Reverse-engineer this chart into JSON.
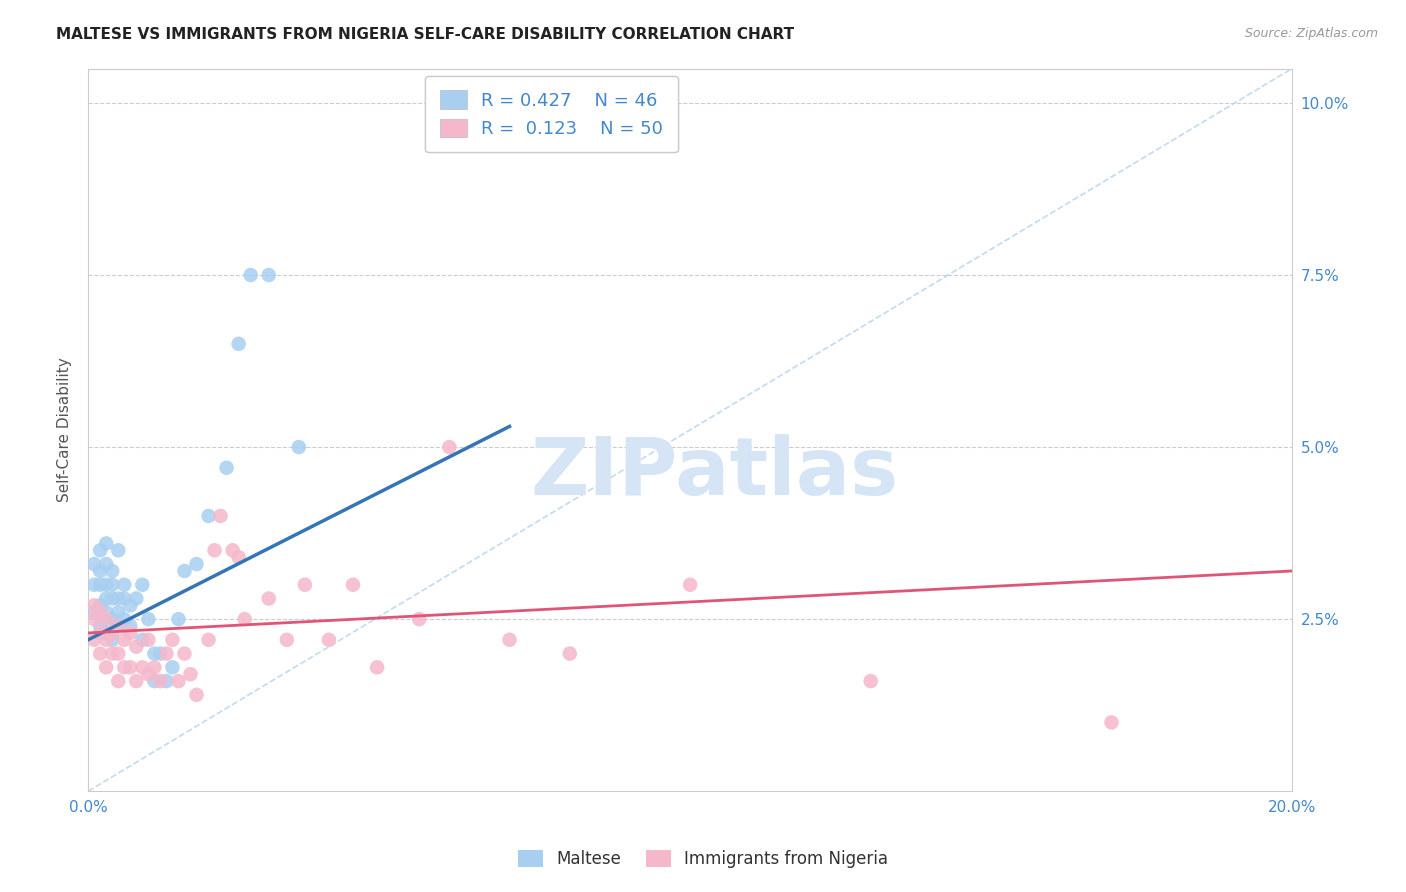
{
  "title": "MALTESE VS IMMIGRANTS FROM NIGERIA SELF-CARE DISABILITY CORRELATION CHART",
  "source": "Source: ZipAtlas.com",
  "ylabel": "Self-Care Disability",
  "xlim": [
    0.0,
    0.2
  ],
  "ylim": [
    0.0,
    0.105
  ],
  "xticks": [
    0.0,
    0.05,
    0.1,
    0.15,
    0.2
  ],
  "xtick_labels": [
    "0.0%",
    "",
    "",
    "",
    "20.0%"
  ],
  "yticks": [
    0.025,
    0.05,
    0.075,
    0.1
  ],
  "ytick_labels": [
    "2.5%",
    "5.0%",
    "7.5%",
    "10.0%"
  ],
  "blue_color": "#a8cff0",
  "pink_color": "#f5b8cb",
  "blue_line_color": "#3575b5",
  "pink_line_color": "#e05575",
  "ref_line_color": "#b8d4ee",
  "tick_color": "#4488cc",
  "R_blue": 0.427,
  "N_blue": 46,
  "R_pink": 0.123,
  "N_pink": 50,
  "blue_scatter_x": [
    0.001,
    0.001,
    0.001,
    0.002,
    0.002,
    0.002,
    0.002,
    0.002,
    0.003,
    0.003,
    0.003,
    0.003,
    0.003,
    0.003,
    0.004,
    0.004,
    0.004,
    0.004,
    0.004,
    0.005,
    0.005,
    0.005,
    0.005,
    0.006,
    0.006,
    0.006,
    0.007,
    0.007,
    0.008,
    0.009,
    0.009,
    0.01,
    0.011,
    0.011,
    0.012,
    0.013,
    0.014,
    0.015,
    0.016,
    0.018,
    0.02,
    0.023,
    0.025,
    0.027,
    0.03,
    0.035
  ],
  "blue_scatter_y": [
    0.026,
    0.03,
    0.033,
    0.024,
    0.027,
    0.03,
    0.032,
    0.035,
    0.023,
    0.026,
    0.028,
    0.03,
    0.033,
    0.036,
    0.022,
    0.025,
    0.028,
    0.03,
    0.032,
    0.024,
    0.026,
    0.028,
    0.035,
    0.025,
    0.028,
    0.03,
    0.024,
    0.027,
    0.028,
    0.022,
    0.03,
    0.025,
    0.016,
    0.02,
    0.02,
    0.016,
    0.018,
    0.025,
    0.032,
    0.033,
    0.04,
    0.047,
    0.065,
    0.075,
    0.075,
    0.05
  ],
  "pink_scatter_x": [
    0.001,
    0.001,
    0.001,
    0.002,
    0.002,
    0.002,
    0.003,
    0.003,
    0.003,
    0.004,
    0.004,
    0.005,
    0.005,
    0.005,
    0.006,
    0.006,
    0.007,
    0.007,
    0.008,
    0.008,
    0.009,
    0.01,
    0.01,
    0.011,
    0.012,
    0.013,
    0.014,
    0.015,
    0.016,
    0.017,
    0.018,
    0.02,
    0.021,
    0.022,
    0.024,
    0.025,
    0.026,
    0.03,
    0.033,
    0.036,
    0.04,
    0.044,
    0.048,
    0.055,
    0.06,
    0.07,
    0.08,
    0.1,
    0.13,
    0.17
  ],
  "pink_scatter_y": [
    0.022,
    0.025,
    0.027,
    0.02,
    0.023,
    0.026,
    0.018,
    0.022,
    0.025,
    0.02,
    0.023,
    0.016,
    0.02,
    0.024,
    0.018,
    0.022,
    0.018,
    0.023,
    0.016,
    0.021,
    0.018,
    0.017,
    0.022,
    0.018,
    0.016,
    0.02,
    0.022,
    0.016,
    0.02,
    0.017,
    0.014,
    0.022,
    0.035,
    0.04,
    0.035,
    0.034,
    0.025,
    0.028,
    0.022,
    0.03,
    0.022,
    0.03,
    0.018,
    0.025,
    0.05,
    0.022,
    0.02,
    0.03,
    0.016,
    0.01
  ],
  "blue_line_x": [
    0.0,
    0.07
  ],
  "blue_line_y": [
    0.022,
    0.053
  ],
  "pink_line_x": [
    0.0,
    0.2
  ],
  "pink_line_y": [
    0.023,
    0.032
  ],
  "ref_line_x": [
    0.0,
    0.2
  ],
  "ref_line_y": [
    0.0,
    0.105
  ],
  "background_color": "#ffffff",
  "grid_color": "#cccccc",
  "watermark_text": "ZIPatlas",
  "watermark_color": "#d5e5f5",
  "title_fontsize": 11,
  "source_fontsize": 9,
  "tick_fontsize": 11,
  "ylabel_fontsize": 11
}
